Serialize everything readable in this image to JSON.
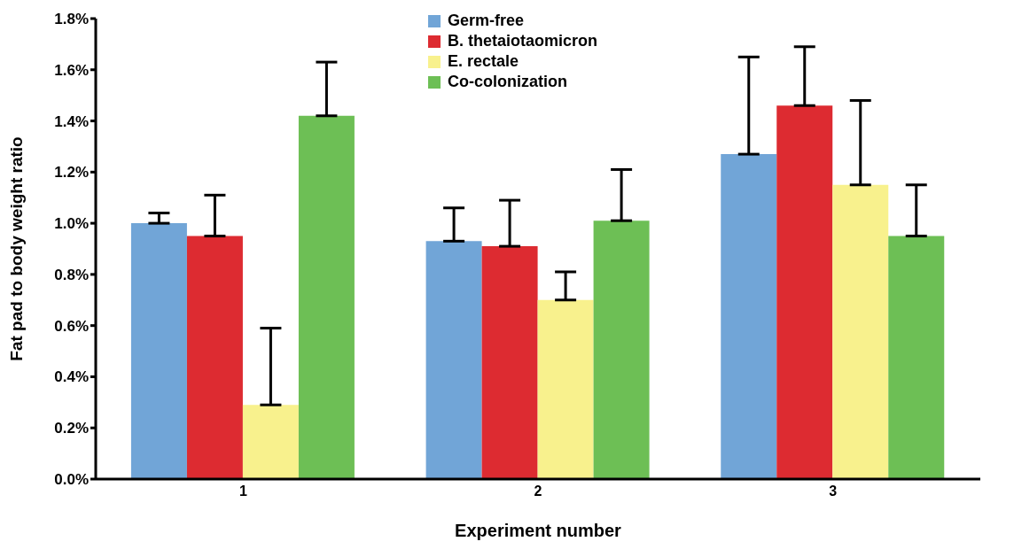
{
  "chart_data": {
    "type": "bar",
    "xlabel": "Experiment number",
    "ylabel": "Fat pad to body weight ratio",
    "categories": [
      "1",
      "2",
      "3"
    ],
    "series": [
      {
        "name": "Germ-free",
        "color": "#71a5d7",
        "values": [
          1.0,
          0.93,
          1.27
        ],
        "errors": [
          [
            1.0,
            1.04
          ],
          [
            0.93,
            1.06
          ],
          [
            1.27,
            1.65
          ]
        ]
      },
      {
        "name": "B. thetaiotaomicron",
        "color": "#dd2b31",
        "values": [
          0.95,
          0.91,
          1.46
        ],
        "errors": [
          [
            0.95,
            1.11
          ],
          [
            0.91,
            1.09
          ],
          [
            1.46,
            1.69
          ]
        ]
      },
      {
        "name": "E. rectale",
        "color": "#f8f18d",
        "values": [
          0.29,
          0.7,
          1.15
        ],
        "errors": [
          [
            0.29,
            0.59
          ],
          [
            0.7,
            0.81
          ],
          [
            1.15,
            1.48
          ]
        ]
      },
      {
        "name": "Co-colonization",
        "color": "#6dbf55",
        "values": [
          1.42,
          1.01,
          0.95
        ],
        "errors": [
          [
            1.42,
            1.63
          ],
          [
            1.01,
            1.21
          ],
          [
            0.95,
            1.15
          ]
        ]
      }
    ],
    "ylim": [
      0,
      1.8
    ],
    "yticks": [
      {
        "value": 0,
        "label": "0.0%"
      },
      {
        "value": 0.2,
        "label": "0.2%"
      },
      {
        "value": 0.4,
        "label": "0.4%"
      },
      {
        "value": 0.6,
        "label": "0.6%"
      },
      {
        "value": 0.8,
        "label": "0.8%"
      },
      {
        "value": 1.0,
        "label": "1.0%"
      },
      {
        "value": 1.2,
        "label": "1.2%"
      },
      {
        "value": 1.4,
        "label": "1.4%"
      },
      {
        "value": 1.6,
        "label": "1.6%"
      },
      {
        "value": 1.8,
        "label": "1.8%"
      }
    ],
    "grid": false,
    "legend": "top"
  }
}
